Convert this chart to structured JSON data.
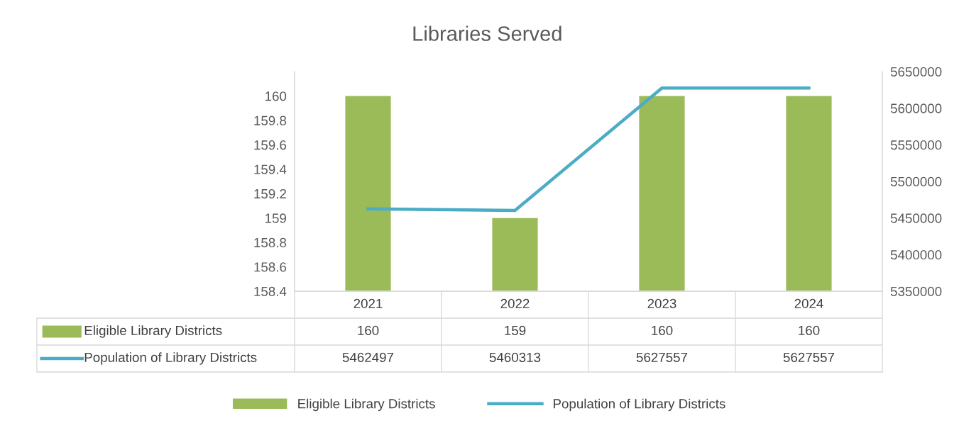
{
  "chart_data": {
    "type": "bar",
    "title": "Libraries Served",
    "categories": [
      "2021",
      "2022",
      "2023",
      "2024"
    ],
    "series": [
      {
        "name": "Eligible Library Districts",
        "color": "#9bbb59",
        "values": [
          160,
          159,
          160,
          160
        ]
      },
      {
        "name": "Population of Library Districts",
        "type": "line",
        "axis": "y2",
        "color": "#4bacc6",
        "values": [
          5462497,
          5460313,
          5627557,
          5627557
        ]
      }
    ],
    "ylim": [
      158.4,
      160.2
    ],
    "yticks": [
      158.4,
      158.6,
      158.8,
      159,
      159.2,
      159.4,
      159.6,
      159.8,
      160
    ],
    "y2lim": [
      5350000,
      5650000
    ],
    "y2ticks": [
      5350000,
      5400000,
      5450000,
      5500000,
      5550000,
      5600000,
      5650000
    ],
    "data_labels": true,
    "legend": "bottom",
    "grid": false,
    "line_style": "solid",
    "marker": "none"
  }
}
